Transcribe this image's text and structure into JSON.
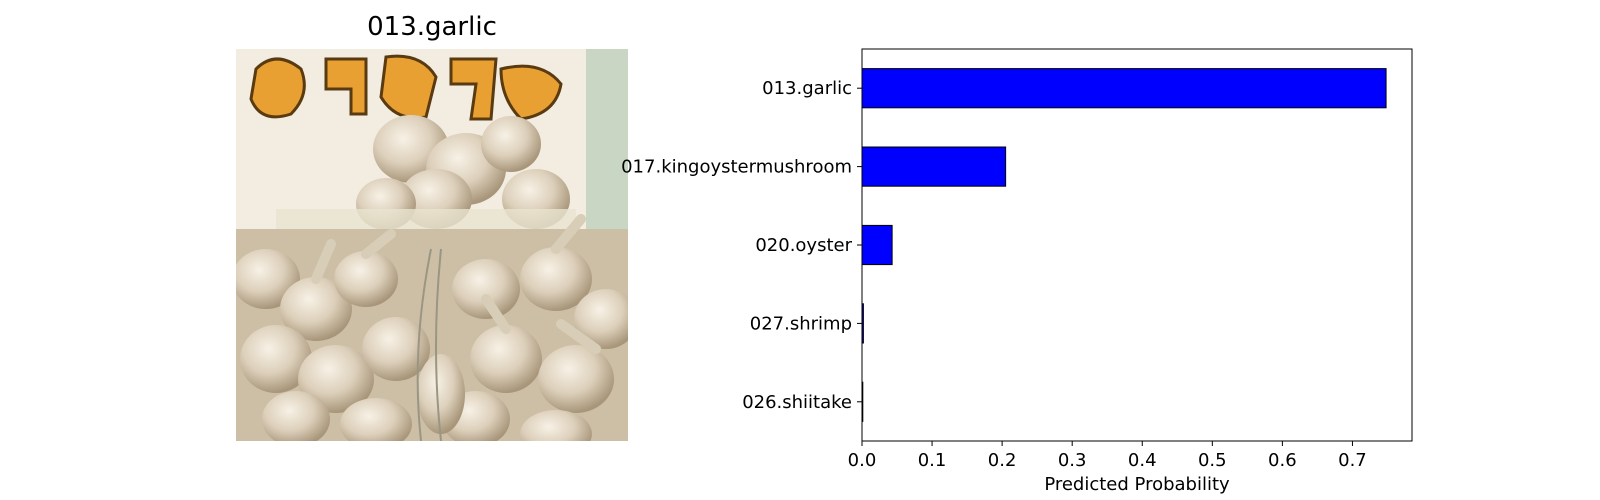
{
  "image_panel": {
    "title": "013.garlic",
    "subject": "garlic-photo"
  },
  "chart_data": {
    "type": "bar",
    "orientation": "horizontal",
    "categories": [
      "013.garlic",
      "017.kingoystermushroom",
      "020.oyster",
      "027.shrimp",
      "026.shiitake"
    ],
    "values": [
      0.748,
      0.205,
      0.043,
      0.002,
      0.001
    ],
    "xlabel": "Predicted Probability",
    "ylabel": "",
    "xlim": [
      0,
      0.785
    ],
    "xticks": [
      "0.0",
      "0.1",
      "0.2",
      "0.3",
      "0.4",
      "0.5",
      "0.6",
      "0.7"
    ],
    "grid": false,
    "bar_color": "#0000ff",
    "edge_color": "#000000"
  }
}
